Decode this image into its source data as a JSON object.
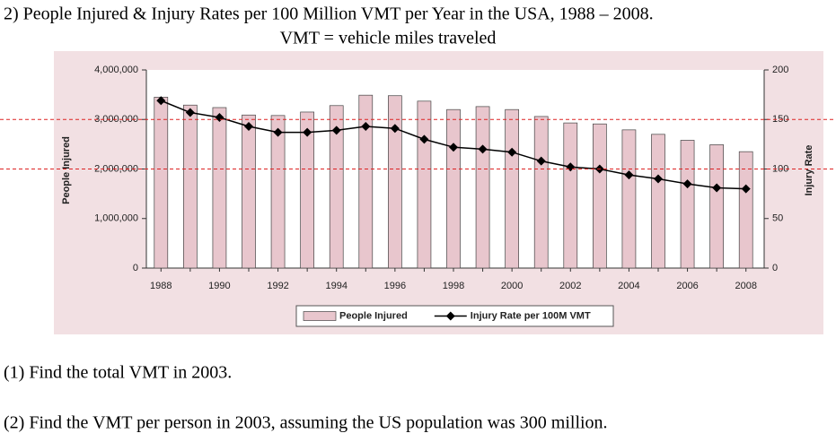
{
  "chart_data": {
    "type": "bar",
    "title": "2) People Injured & Injury Rates per 100 Million VMT per Year in the USA, 1988 – 2008.",
    "subtitle": "VMT = vehicle miles traveled",
    "categories": [
      "1988",
      null,
      "1990",
      null,
      "1992",
      null,
      "1994",
      null,
      "1996",
      null,
      "1998",
      null,
      "2000",
      null,
      "2002",
      null,
      "2004",
      null,
      "2006",
      null,
      "2008"
    ],
    "series": [
      {
        "name": "People Injured",
        "type": "bar",
        "color": "#e8c6cd",
        "values": [
          3450000,
          3290000,
          3240000,
          3090000,
          3080000,
          3150000,
          3280000,
          3490000,
          3480000,
          3370000,
          3200000,
          3260000,
          3200000,
          3060000,
          2930000,
          2910000,
          2790000,
          2700000,
          2580000,
          2490000,
          2350000
        ]
      },
      {
        "name": "Injury Rate per 100M VMT",
        "type": "line",
        "color": "#000000",
        "axis": "y2",
        "values": [
          169,
          157,
          152,
          143,
          137,
          137,
          139,
          143,
          141,
          130,
          122,
          120,
          117,
          108,
          102,
          100,
          94,
          90,
          85,
          81,
          80
        ]
      }
    ],
    "ylabel": "People Injured",
    "y2label": "Injury Rate",
    "ylim": [
      0,
      4000000
    ],
    "yticks": [
      0,
      {
        "value": 1000000,
        "label": "1,000,000"
      },
      {
        "value": 2000000,
        "label": "2,000,000"
      },
      {
        "value": 3000000,
        "label": "3,000,000"
      },
      {
        "value": 4000000,
        "label": "4,000,000"
      }
    ],
    "y2lim": [
      0,
      200
    ],
    "y2ticks": [
      0,
      50,
      100,
      150,
      200
    ],
    "y2_reference_lines": [
      150,
      100
    ],
    "legend": "bottom"
  },
  "questions": [
    "(1)  Find the total VMT in 2003.",
    "(2)  Find the VMT per person in 2003, assuming the US population was 300 million."
  ]
}
